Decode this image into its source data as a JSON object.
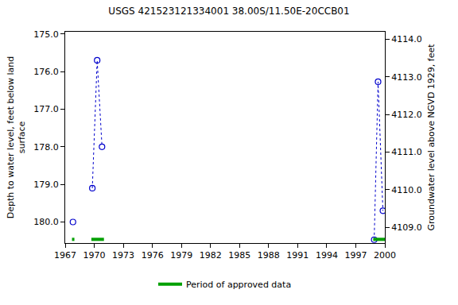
{
  "chart_data": {
    "type": "scatter",
    "title": "USGS 421523121334001 38.00S/11.50E-20CCB01",
    "x_label": null,
    "y_label": "Depth to water level, feet below land\nsurface",
    "y2_label": "Groundwater level above NGVD 1929, feet",
    "x": [
      1967.8,
      null,
      1969.8,
      1970.3,
      1970.8,
      null,
      1998.9,
      1999.3,
      1999.8
    ],
    "series": [
      {
        "name": "Depth to water level",
        "color": "#0000cc",
        "marker": "open-circle",
        "line_style": "dotted",
        "values": [
          180.0,
          null,
          179.1,
          175.7,
          178.0,
          null,
          180.47,
          176.27,
          179.7
        ]
      }
    ],
    "xlim": [
      1967,
      2000
    ],
    "xticks": [
      1967,
      1970,
      1973,
      1976,
      1979,
      1982,
      1985,
      1988,
      1991,
      1994,
      1997,
      2000
    ],
    "ylim": [
      180.56,
      174.94
    ],
    "yticks": [
      {
        "value": 175,
        "label": "175.0"
      },
      {
        "value": 176,
        "label": "176.0"
      },
      {
        "value": 177,
        "label": "177.0"
      },
      {
        "value": 178,
        "label": "178.0"
      },
      {
        "value": 179,
        "label": "179.0"
      },
      {
        "value": 180,
        "label": "180.0"
      }
    ],
    "y2lim": [
      4108.58,
      4114.2
    ],
    "y2ticks": [
      {
        "value": 4109,
        "label": "4109.0"
      },
      {
        "value": 4110,
        "label": "4110.0"
      },
      {
        "value": 4111,
        "label": "4111.0"
      },
      {
        "value": 4112,
        "label": "4112.0"
      },
      {
        "value": 4113,
        "label": "4113.0"
      },
      {
        "value": 4114,
        "label": "4114.0"
      }
    ],
    "approved_periods": {
      "name": "Period of approved data",
      "color": "#00a000",
      "periods": [
        [
          1967.7,
          1967.95
        ],
        [
          1969.7,
          1971.0
        ],
        [
          1998.8,
          2000.0
        ]
      ]
    },
    "grid": false,
    "legend": "bottom"
  }
}
